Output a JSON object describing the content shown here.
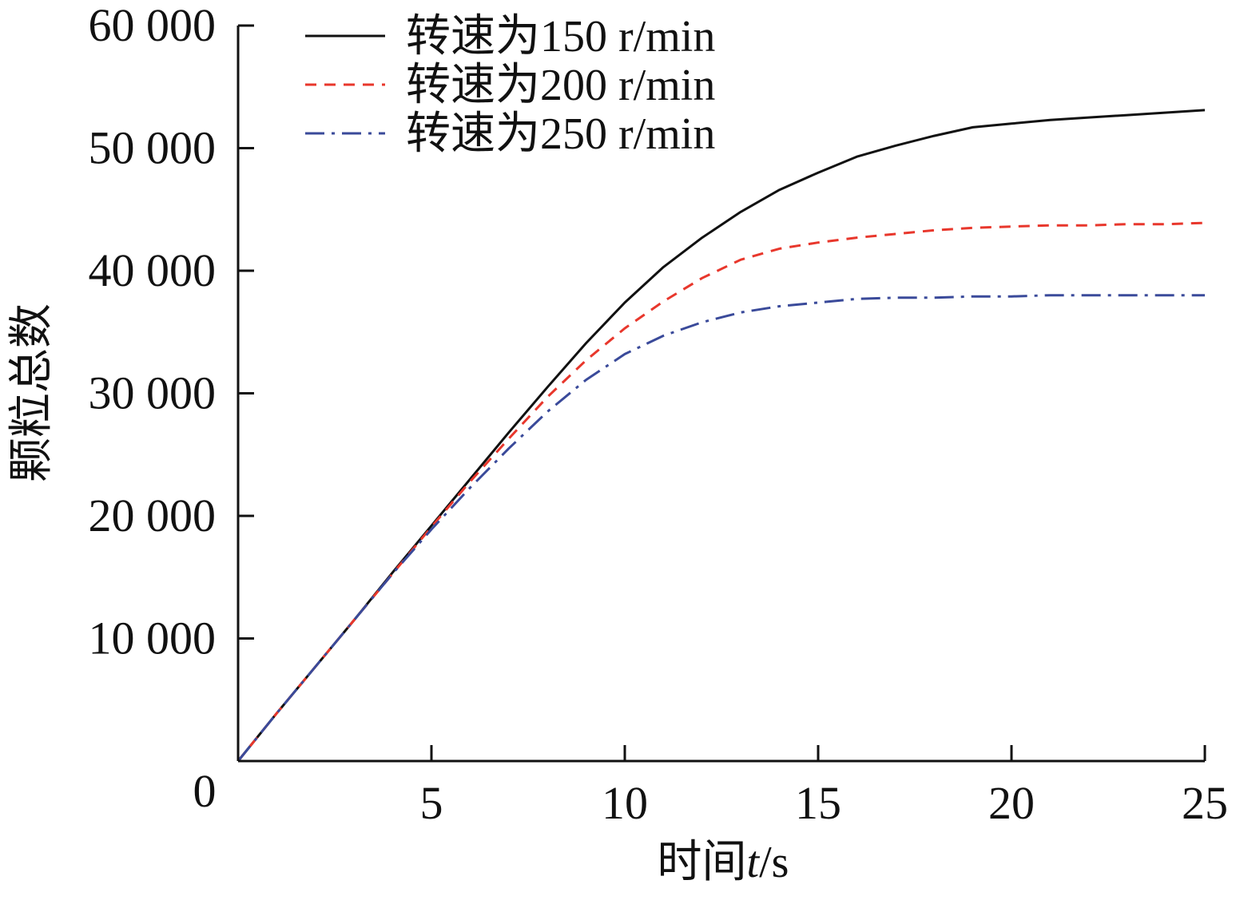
{
  "chart_data": {
    "type": "line",
    "title": "",
    "xlabel_parts": [
      "时间",
      "t",
      "/s"
    ],
    "ylabel": "颗粒总数",
    "xlim": [
      0,
      25
    ],
    "ylim": [
      0,
      60000
    ],
    "xticks": [
      5,
      10,
      15,
      20,
      25
    ],
    "xtick_labels": [
      "5",
      "10",
      "15",
      "20",
      "25"
    ],
    "yticks": [
      10000,
      20000,
      30000,
      40000,
      50000,
      60000
    ],
    "ytick_labels": [
      "10 000",
      "20 000",
      "30 000",
      "40 000",
      "50 000",
      "60 000"
    ],
    "origin_label": "0",
    "grid": false,
    "legend_position": "top-left",
    "series": [
      {
        "name": "转速为150 r/min",
        "color": "#111111",
        "style": "solid",
        "x": [
          0,
          1,
          2,
          3,
          4,
          5,
          6,
          7,
          8,
          9,
          10,
          11,
          12,
          13,
          14,
          15,
          16,
          17,
          18,
          19,
          20,
          21,
          22,
          23,
          24,
          25
        ],
        "y": [
          0,
          3900,
          7700,
          11500,
          15400,
          19200,
          23000,
          26800,
          30500,
          34100,
          37400,
          40300,
          42700,
          44800,
          46600,
          48000,
          49300,
          50200,
          51000,
          51700,
          52000,
          52300,
          52500,
          52700,
          52900,
          53100
        ]
      },
      {
        "name": "转速为200 r/min",
        "color": "#e8372c",
        "style": "dashed",
        "x": [
          0,
          1,
          2,
          3,
          4,
          5,
          6,
          7,
          8,
          9,
          10,
          11,
          12,
          13,
          14,
          15,
          16,
          17,
          18,
          19,
          20,
          21,
          22,
          23,
          24,
          25
        ],
        "y": [
          0,
          3900,
          7700,
          11500,
          15300,
          19100,
          22800,
          26300,
          29700,
          32700,
          35300,
          37500,
          39400,
          40900,
          41800,
          42300,
          42700,
          43000,
          43300,
          43500,
          43600,
          43700,
          43700,
          43800,
          43800,
          43900
        ]
      },
      {
        "name": "转速为250 r/min",
        "color": "#3a4a9a",
        "style": "dashdot",
        "x": [
          0,
          1,
          2,
          3,
          4,
          5,
          6,
          7,
          8,
          9,
          10,
          11,
          12,
          13,
          14,
          15,
          16,
          17,
          18,
          19,
          20,
          21,
          22,
          23,
          24,
          25
        ],
        "y": [
          0,
          3900,
          7700,
          11500,
          15300,
          18900,
          22300,
          25500,
          28500,
          31100,
          33200,
          34700,
          35800,
          36600,
          37100,
          37400,
          37700,
          37800,
          37800,
          37900,
          37900,
          38000,
          38000,
          38000,
          38000,
          38000
        ]
      }
    ]
  }
}
